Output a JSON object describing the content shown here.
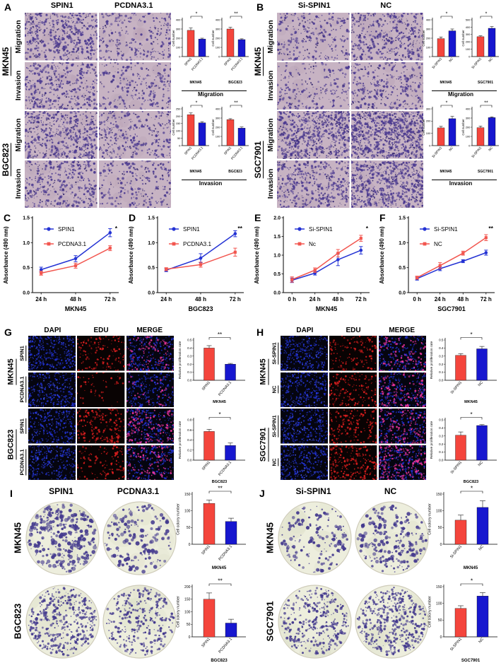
{
  "colors": {
    "red": "#f4453c",
    "blue": "#1717cf",
    "line_blue": "#2433d4",
    "line_red": "#f2564f"
  },
  "panels": {
    "A": {
      "letter": "A",
      "col_headers": [
        "SPIN1",
        "PCDNA3.1"
      ],
      "groups": [
        {
          "cell_line": "MKN45",
          "rows": [
            "Migration",
            "Invasion"
          ]
        },
        {
          "cell_line": "BGC823",
          "rows": [
            "Migration",
            "Invasion"
          ]
        }
      ],
      "chart_groups": [
        {
          "label": "Migration",
          "charts": [
            "A_mig_MKN45",
            "A_mig_BGC823"
          ]
        },
        {
          "label": "Invasion",
          "charts": [
            "A_inv_MKN45",
            "A_inv_BGC823"
          ]
        }
      ]
    },
    "B": {
      "letter": "B",
      "col_headers": [
        "Si-SPIN1",
        "NC"
      ],
      "groups": [
        {
          "cell_line": "MKN45",
          "rows": [
            "Migration",
            "Invasion"
          ]
        },
        {
          "cell_line": "SGC7901",
          "rows": [
            "Migration",
            "Invasion"
          ]
        }
      ],
      "chart_groups": [
        {
          "label": "Migration",
          "charts": [
            "B_mig_MKN45",
            "B_mig_SGC7901"
          ]
        },
        {
          "label": "Invasion",
          "charts": [
            "B_inv_MKN45",
            "B_inv_SGC7901"
          ]
        }
      ]
    },
    "C": {
      "letter": "C"
    },
    "D": {
      "letter": "D"
    },
    "E": {
      "letter": "E"
    },
    "F": {
      "letter": "F"
    },
    "G": {
      "letter": "G",
      "col_headers": [
        "DAPI",
        "EDU",
        "MERGE"
      ],
      "groups": [
        {
          "cell_line": "MKN45",
          "rows": [
            "SPIN1",
            "PCDNA3.1"
          ]
        },
        {
          "cell_line": "BGC823",
          "rows": [
            "SPIN1",
            "PCDNA3.1"
          ]
        }
      ],
      "charts": [
        "G_MKN45",
        "G_BGC823"
      ]
    },
    "H": {
      "letter": "H",
      "col_headers": [
        "DAPI",
        "EDU",
        "MERGE"
      ],
      "groups": [
        {
          "cell_line": "MKN45",
          "rows": [
            "SI-SPIN1",
            "NC"
          ]
        },
        {
          "cell_line": "SGC7901",
          "rows": [
            "SI-SPIN1",
            "NC"
          ]
        }
      ],
      "charts": [
        "H_MKN45",
        "H_BGC823"
      ]
    },
    "I": {
      "letter": "I",
      "col_headers": [
        "SPIN1",
        "PCDNA3.1"
      ],
      "rows": [
        "MKN45",
        "BGC823"
      ],
      "charts": [
        "I_MKN45",
        "I_BGC823"
      ]
    },
    "J": {
      "letter": "J",
      "col_headers": [
        "Si-SPIN1",
        "NC"
      ],
      "rows": [
        "MKN45",
        "SGC7901"
      ],
      "charts": [
        "J_MKN45",
        "J_SGC7901"
      ]
    }
  },
  "chart_data": [
    {
      "id": "A_mig_MKN45",
      "type": "bar",
      "ylabel": "Cell number",
      "ylim": [
        0,
        400
      ],
      "yticks": [
        "0",
        "100",
        "200",
        "300",
        "400"
      ],
      "categories": [
        "SPIN1",
        "PCDNA3.1"
      ],
      "values": [
        285,
        190
      ],
      "errors": [
        25,
        10
      ],
      "bar_colors": [
        "red",
        "blue"
      ],
      "sig": "*",
      "sublabel": "MKN45"
    },
    {
      "id": "A_mig_BGC823",
      "type": "bar",
      "ylabel": "Cell number",
      "ylim": [
        0,
        400
      ],
      "yticks": [
        "0",
        "100",
        "200",
        "300",
        "400"
      ],
      "categories": [
        "SPIN1",
        "PCDNA3.1"
      ],
      "values": [
        300,
        185
      ],
      "errors": [
        18,
        8
      ],
      "bar_colors": [
        "red",
        "blue"
      ],
      "sig": "**",
      "sublabel": "BGC823"
    },
    {
      "id": "A_inv_MKN45",
      "type": "bar",
      "ylabel": "Cell number",
      "ylim": [
        0,
        250
      ],
      "yticks": [
        "0",
        "50",
        "100",
        "150",
        "200",
        "250"
      ],
      "categories": [
        "SPIN1",
        "PCDNA3.1"
      ],
      "values": [
        210,
        155
      ],
      "errors": [
        12,
        8
      ],
      "bar_colors": [
        "red",
        "blue"
      ],
      "sig": "*",
      "sublabel": "MKN45"
    },
    {
      "id": "A_inv_BGC823",
      "type": "bar",
      "ylabel": "Cell number",
      "ylim": [
        0,
        400
      ],
      "yticks": [
        "0",
        "100",
        "200",
        "300",
        "400"
      ],
      "categories": [
        "SPIN1",
        "PCDNA3.1"
      ],
      "values": [
        283,
        190
      ],
      "errors": [
        10,
        12
      ],
      "bar_colors": [
        "red",
        "blue"
      ],
      "sig": "**",
      "sublabel": "BGC823"
    },
    {
      "id": "B_mig_MKN45",
      "type": "bar",
      "ylabel": "Cell number",
      "ylim": [
        0,
        400
      ],
      "yticks": [
        "0",
        "100",
        "200",
        "300",
        "400"
      ],
      "categories": [
        "Si-SPIN1",
        "NC"
      ],
      "values": [
        195,
        280
      ],
      "errors": [
        18,
        20
      ],
      "bar_colors": [
        "red",
        "blue"
      ],
      "sig": "*",
      "sublabel": "MKN45"
    },
    {
      "id": "B_mig_SGC7901",
      "type": "bar",
      "ylabel": "Cell number",
      "ylim": [
        0,
        500
      ],
      "yticks": [
        "0",
        "100",
        "200",
        "300",
        "400",
        "500"
      ],
      "categories": [
        "Si-SPIN1",
        "NC"
      ],
      "values": [
        270,
        385
      ],
      "errors": [
        12,
        22
      ],
      "bar_colors": [
        "red",
        "blue"
      ],
      "sig": "*",
      "sublabel": "SGC7901"
    },
    {
      "id": "B_inv_MKN45",
      "type": "bar",
      "ylabel": "Cell number",
      "ylim": [
        0,
        300
      ],
      "yticks": [
        "0",
        "100",
        "200",
        "300"
      ],
      "categories": [
        "Si-SPIN1",
        "NC"
      ],
      "values": [
        145,
        220
      ],
      "errors": [
        12,
        18
      ],
      "bar_colors": [
        "red",
        "blue"
      ],
      "sig": "*",
      "sublabel": "MKN45"
    },
    {
      "id": "B_inv_SGC7901",
      "type": "bar",
      "ylabel": "Cell number",
      "ylim": [
        0,
        400
      ],
      "yticks": [
        "0",
        "100",
        "200",
        "300",
        "400"
      ],
      "categories": [
        "Si-SPIN1",
        "NC"
      ],
      "values": [
        195,
        305
      ],
      "errors": [
        18,
        8
      ],
      "bar_colors": [
        "red",
        "blue"
      ],
      "sig": "**",
      "sublabel": "SGC7901"
    },
    {
      "id": "C",
      "type": "line",
      "xlabel": "MKN45",
      "ylabel": "Absorbance (490 nm)",
      "x": [
        "24 h",
        "48 h",
        "72 h"
      ],
      "ylim": [
        0,
        1.5
      ],
      "yticks": [
        "0.0",
        "0.5",
        "1.0",
        "1.5"
      ],
      "sig": "*",
      "legend_position": "top-left",
      "series": [
        {
          "name": "SPIN1",
          "color": "blue",
          "marker": "circle",
          "values": [
            0.46,
            0.68,
            1.2
          ],
          "errors": [
            0.05,
            0.06,
            0.08
          ]
        },
        {
          "name": "PCDNA3.1",
          "color": "red",
          "marker": "square",
          "values": [
            0.39,
            0.54,
            0.89
          ],
          "errors": [
            0.04,
            0.05,
            0.05
          ]
        }
      ]
    },
    {
      "id": "D",
      "type": "line",
      "xlabel": "BGC823",
      "ylabel": "Absorbance (490 nm)",
      "x": [
        "24 h",
        "48 h",
        "72 h"
      ],
      "ylim": [
        0,
        1.5
      ],
      "yticks": [
        "0.0",
        "0.5",
        "1.0",
        "1.5"
      ],
      "sig": "**",
      "legend_position": "top-left",
      "series": [
        {
          "name": "SPIN1",
          "color": "blue",
          "marker": "circle",
          "values": [
            0.45,
            0.69,
            1.18
          ],
          "errors": [
            0.03,
            0.09,
            0.06
          ]
        },
        {
          "name": "PCDNA3.1",
          "color": "red",
          "marker": "square",
          "values": [
            0.47,
            0.56,
            0.81
          ],
          "errors": [
            0.03,
            0.05,
            0.08
          ]
        }
      ]
    },
    {
      "id": "E",
      "type": "line",
      "xlabel": "MKN45",
      "ylabel": "Absorbance (490 nm)",
      "x": [
        "0 h",
        "24 h",
        "48 h",
        "72 h"
      ],
      "ylim": [
        0,
        2.0
      ],
      "yticks": [
        "0.0",
        "0.5",
        "1.0",
        "1.5",
        "2.0"
      ],
      "sig": "*",
      "legend_position": "top-left",
      "series": [
        {
          "name": "Si-SPIN1",
          "color": "blue",
          "marker": "circle",
          "values": [
            0.33,
            0.52,
            0.88,
            1.13
          ],
          "errors": [
            0.06,
            0.05,
            0.16,
            0.1
          ]
        },
        {
          "name": "Nc",
          "color": "red",
          "marker": "square",
          "values": [
            0.35,
            0.6,
            1.05,
            1.45
          ],
          "errors": [
            0.07,
            0.06,
            0.1,
            0.08
          ]
        }
      ]
    },
    {
      "id": "F",
      "type": "line",
      "xlabel": "SGC7901",
      "ylabel": "Absorbance (490 nm)",
      "x": [
        "0 h",
        "24 h",
        "48 h",
        "72 h"
      ],
      "ylim": [
        0,
        1.5
      ],
      "yticks": [
        "0.0",
        "0.5",
        "1.0",
        "1.5"
      ],
      "sig": "**",
      "legend_position": "top-left",
      "series": [
        {
          "name": "Si-SPIN1",
          "color": "blue",
          "marker": "circle",
          "values": [
            0.28,
            0.48,
            0.63,
            0.8
          ],
          "errors": [
            0.03,
            0.04,
            0.03,
            0.05
          ]
        },
        {
          "name": "NC",
          "color": "red",
          "marker": "square",
          "values": [
            0.3,
            0.54,
            0.79,
            1.1
          ],
          "errors": [
            0.03,
            0.06,
            0.04,
            0.06
          ]
        }
      ]
    },
    {
      "id": "G_MKN45",
      "type": "bar",
      "ylabel": "Relative proliferation rate",
      "ylim": [
        0,
        0.5
      ],
      "yticks": [
        "0.0",
        "0.1",
        "0.2",
        "0.3",
        "0.4",
        "0.5"
      ],
      "categories": [
        "SPIN1",
        "PCDNA3.1"
      ],
      "values": [
        0.4,
        0.2
      ],
      "errors": [
        0.03,
        0.01
      ],
      "bar_colors": [
        "red",
        "blue"
      ],
      "sig": "**",
      "sublabel": "MKN45"
    },
    {
      "id": "G_BGC823",
      "type": "bar",
      "ylabel": "Relative proliferation rate",
      "ylim": [
        0,
        0.8
      ],
      "yticks": [
        "0.0",
        "0.2",
        "0.4",
        "0.6",
        "0.8"
      ],
      "categories": [
        "SPIN1",
        "PCDNA3.1"
      ],
      "values": [
        0.57,
        0.29
      ],
      "errors": [
        0.04,
        0.05
      ],
      "bar_colors": [
        "red",
        "blue"
      ],
      "sig": "*",
      "sublabel": "BGC823"
    },
    {
      "id": "H_MKN45",
      "type": "bar",
      "ylabel": "Relative proliferation rate",
      "ylim": [
        0,
        0.5
      ],
      "yticks": [
        "0.0",
        "0.1",
        "0.2",
        "0.3",
        "0.4",
        "0.5"
      ],
      "categories": [
        "Si-SPIN1",
        "NC"
      ],
      "values": [
        0.31,
        0.39
      ],
      "errors": [
        0.02,
        0.03
      ],
      "bar_colors": [
        "red",
        "blue"
      ],
      "sig": "*",
      "sublabel": "MKN45"
    },
    {
      "id": "H_BGC823",
      "type": "bar",
      "ylabel": "Relative proliferation rate",
      "ylim": [
        0,
        0.5
      ],
      "yticks": [
        "0.0",
        "0.1",
        "0.2",
        "0.3",
        "0.4",
        "0.5"
      ],
      "categories": [
        "Si-SPIN1",
        "NC"
      ],
      "values": [
        0.31,
        0.43
      ],
      "errors": [
        0.04,
        0.01
      ],
      "bar_colors": [
        "red",
        "blue"
      ],
      "sig": "*",
      "sublabel": "BGC823"
    },
    {
      "id": "I_MKN45",
      "type": "bar",
      "ylabel": "Cell colony number",
      "ylim": [
        0,
        150
      ],
      "yticks": [
        "0",
        "50",
        "100",
        "150"
      ],
      "categories": [
        "SPIN1",
        "PCDNA3.1"
      ],
      "values": [
        122,
        68
      ],
      "errors": [
        10,
        10
      ],
      "bar_colors": [
        "red",
        "blue"
      ],
      "sig": "**",
      "sublabel": "MKN45"
    },
    {
      "id": "I_BGC823",
      "type": "bar",
      "ylabel": "Cell colony number",
      "ylim": [
        0,
        200
      ],
      "yticks": [
        "0",
        "50",
        "100",
        "150",
        "200"
      ],
      "categories": [
        "SPIN1",
        "PCDNA3.1"
      ],
      "values": [
        150,
        55
      ],
      "errors": [
        25,
        15
      ],
      "bar_colors": [
        "red",
        "blue"
      ],
      "sig": "**",
      "sublabel": "BGC823"
    },
    {
      "id": "J_MKN45",
      "type": "bar",
      "ylabel": "Cell colony number",
      "ylim": [
        0,
        150
      ],
      "yticks": [
        "0",
        "50",
        "100",
        "150"
      ],
      "categories": [
        "Si-SPIN1",
        "NC"
      ],
      "values": [
        72,
        110
      ],
      "errors": [
        15,
        20
      ],
      "bar_colors": [
        "red",
        "blue"
      ],
      "sig": "*",
      "sublabel": "MKN45"
    },
    {
      "id": "J_SGC7901",
      "type": "bar",
      "ylabel": "Cell colony number",
      "ylim": [
        0,
        150
      ],
      "yticks": [
        "0",
        "50",
        "100",
        "150"
      ],
      "categories": [
        "Si-SPIN1",
        "NC"
      ],
      "values": [
        85,
        122
      ],
      "errors": [
        8,
        10
      ],
      "bar_colors": [
        "red",
        "blue"
      ],
      "sig": "*",
      "sublabel": "SGC7901"
    }
  ]
}
